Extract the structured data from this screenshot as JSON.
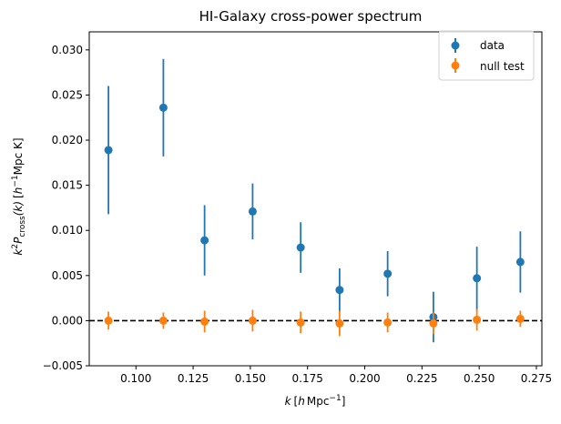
{
  "chart_data": {
    "type": "scatter",
    "title": "HI-Galaxy cross-power spectrum",
    "xlabel": {
      "main": "k",
      "open": "[",
      "unit_h": "h",
      "unit_mpc": "Mpc",
      "unit_exp": "−1",
      "close": "]"
    },
    "ylabel": {
      "k": "k",
      "k_exp": "2",
      "P": "P",
      "P_sub": "cross",
      "arg": "(k)",
      "open": "[",
      "unit_h": "h",
      "unit_h_exp": "−1",
      "unit_rest": "Mpc K",
      "close": "]"
    },
    "xlim": [
      0.0796,
      0.2774
    ],
    "ylim": [
      -0.005,
      0.032
    ],
    "x_ticks": [
      {
        "value": 0.1,
        "label": "0.100"
      },
      {
        "value": 0.125,
        "label": "0.125"
      },
      {
        "value": 0.15,
        "label": "0.150"
      },
      {
        "value": 0.175,
        "label": "0.175"
      },
      {
        "value": 0.2,
        "label": "0.200"
      },
      {
        "value": 0.225,
        "label": "0.225"
      },
      {
        "value": 0.25,
        "label": "0.250"
      },
      {
        "value": 0.275,
        "label": "0.275"
      }
    ],
    "y_ticks": [
      {
        "value": -0.005,
        "label": "−0.005"
      },
      {
        "value": 0.0,
        "label": "0.000"
      },
      {
        "value": 0.005,
        "label": "0.005"
      },
      {
        "value": 0.01,
        "label": "0.010"
      },
      {
        "value": 0.015,
        "label": "0.015"
      },
      {
        "value": 0.02,
        "label": "0.020"
      },
      {
        "value": 0.025,
        "label": "0.025"
      },
      {
        "value": 0.03,
        "label": "0.030"
      }
    ],
    "grid": false,
    "legend_position": "top-right",
    "reference_line": {
      "y": 0.0,
      "style": "dashed",
      "color": "#000000"
    },
    "series": [
      {
        "name": "data",
        "color": "#1f77b4",
        "x": [
          0.088,
          0.112,
          0.13,
          0.151,
          0.172,
          0.189,
          0.21,
          0.23,
          0.249,
          0.268
        ],
        "y": [
          0.0189,
          0.0236,
          0.0089,
          0.0121,
          0.0081,
          0.0034,
          0.0052,
          0.0004,
          0.0047,
          0.0065
        ],
        "yerr": [
          0.0071,
          0.0054,
          0.0039,
          0.0031,
          0.0028,
          0.0024,
          0.0025,
          0.0028,
          0.0035,
          0.0034
        ]
      },
      {
        "name": "null test",
        "color": "#ff7f0e",
        "x": [
          0.088,
          0.112,
          0.13,
          0.151,
          0.172,
          0.189,
          0.21,
          0.23,
          0.249,
          0.268
        ],
        "y": [
          0.0,
          0.0,
          -0.0001,
          0.0,
          -0.0002,
          -0.0003,
          -0.0002,
          -0.0003,
          0.0001,
          0.0002
        ],
        "yerr": [
          0.001,
          0.0009,
          0.0012,
          0.0012,
          0.0012,
          0.0014,
          0.0011,
          0.0012,
          0.0012,
          0.0009
        ]
      }
    ]
  }
}
